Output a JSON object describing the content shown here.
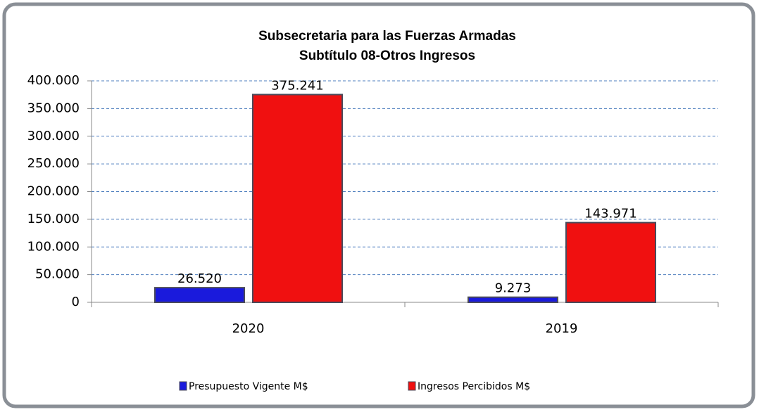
{
  "chart_data": {
    "type": "bar",
    "title": "Subsecretaria para las Fuerzas Armadas",
    "subtitle": "Subtítulo 08-Otros Ingresos",
    "categories": [
      "2020",
      "2019"
    ],
    "series": [
      {
        "name": "Presupuesto Vigente M$",
        "color": "#1a1adc",
        "values": [
          26520,
          9273
        ],
        "value_labels": [
          "26.520",
          "9.273"
        ]
      },
      {
        "name": "Ingresos Percibidos M$",
        "color": "#f01010",
        "values": [
          375241,
          143971
        ],
        "value_labels": [
          "375.241",
          "143.971"
        ]
      }
    ],
    "ylim": [
      0,
      400000
    ],
    "yticks": [
      0,
      {
        "value": 50000,
        "label": "50.000"
      },
      {
        "value": 100000,
        "label": "100.000"
      },
      {
        "value": 150000,
        "label": "150.000"
      },
      {
        "value": 200000,
        "label": "200.000"
      },
      {
        "value": 250000,
        "label": "250.000"
      },
      {
        "value": 300000,
        "label": "300.000"
      },
      {
        "value": 350000,
        "label": "350.000"
      },
      {
        "value": 400000,
        "label": "400.000"
      }
    ],
    "grid": true,
    "legend": "bottom"
  }
}
